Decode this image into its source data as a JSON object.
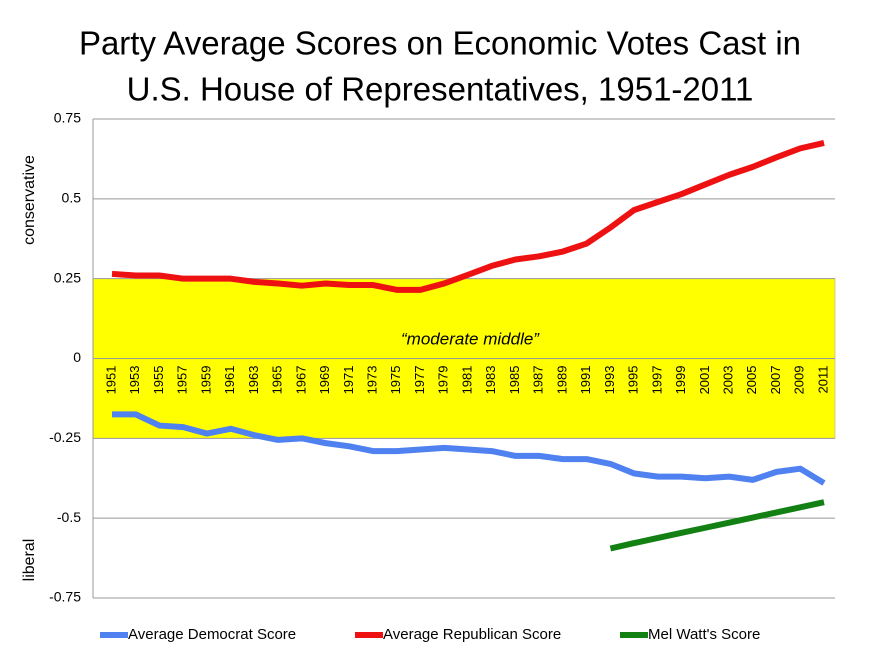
{
  "chart_data": {
    "type": "line",
    "title": [
      "Party Average Scores on Economic Votes Cast in",
      "U.S. House of Representatives, 1951-2011"
    ],
    "axis_labels": [
      "conservative",
      "liberal"
    ],
    "categories": [
      "1951",
      "1953",
      "1955",
      "1957",
      "1959",
      "1961",
      "1963",
      "1965",
      "1967",
      "1969",
      "1971",
      "1973",
      "1975",
      "1977",
      "1979",
      "1981",
      "1983",
      "1985",
      "1987",
      "1989",
      "1991",
      "1993",
      "1995",
      "1997",
      "1999",
      "2001",
      "2003",
      "2005",
      "2007",
      "2009",
      "2011"
    ],
    "series": [
      {
        "name": "Average Democrat Score",
        "color": "#4f81f0",
        "values": [
          -0.175,
          -0.175,
          -0.21,
          -0.215,
          -0.235,
          -0.22,
          -0.24,
          -0.255,
          -0.25,
          -0.265,
          -0.275,
          -0.29,
          -0.29,
          -0.285,
          -0.28,
          -0.285,
          -0.29,
          -0.305,
          -0.305,
          -0.315,
          -0.315,
          -0.33,
          -0.36,
          -0.37,
          -0.37,
          -0.375,
          -0.37,
          -0.38,
          -0.355,
          -0.345,
          -0.39
        ]
      },
      {
        "name": "Average Republican Score",
        "color": "#ee1111",
        "values": [
          0.265,
          0.26,
          0.26,
          0.25,
          0.25,
          0.25,
          0.24,
          0.235,
          0.228,
          0.235,
          0.23,
          0.23,
          0.215,
          0.215,
          0.235,
          0.262,
          0.29,
          0.31,
          0.32,
          0.335,
          0.36,
          0.41,
          0.465,
          0.49,
          0.515,
          0.545,
          0.575,
          0.6,
          0.63,
          0.658,
          0.675
        ]
      },
      {
        "name": "Mel Watt's Score",
        "color": "#128012",
        "values": [
          null,
          null,
          null,
          null,
          null,
          null,
          null,
          null,
          null,
          null,
          null,
          null,
          null,
          null,
          null,
          null,
          null,
          null,
          null,
          null,
          null,
          -0.595,
          -0.578,
          -0.562,
          -0.546,
          -0.53,
          -0.514,
          -0.498,
          -0.482,
          -0.466,
          -0.45
        ]
      }
    ],
    "band": {
      "range": [
        -0.25,
        0.25
      ],
      "color": "#ffff00",
      "label": "“moderate middle”"
    },
    "ylim": [
      -0.75,
      0.75
    ],
    "yticks": [
      0.75,
      0.5,
      0.25,
      0,
      -0.25,
      -0.5,
      -0.75
    ],
    "grid": true,
    "legend": "bottom"
  }
}
